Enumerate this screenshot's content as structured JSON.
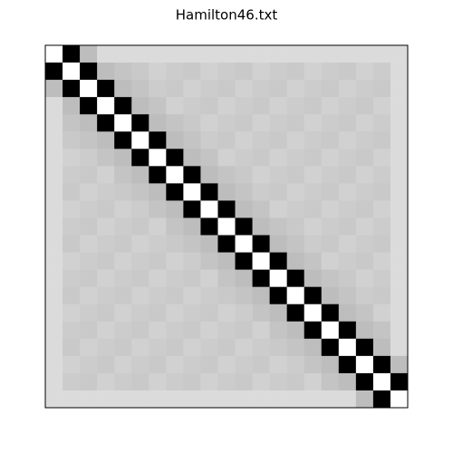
{
  "chart_data": {
    "type": "heatmap",
    "title": "Hamilton46.txt",
    "colormap": "gray",
    "clim": [
      0,
      1
    ],
    "values": [
      [
        1,
        0,
        0.74,
        0.86,
        0.86,
        0.86,
        0.86,
        0.86,
        0.86,
        0.86,
        0.86,
        0.86,
        0.86,
        0.86,
        0.86,
        0.86,
        0.86,
        0.86,
        0.86,
        0.86,
        0.86
      ],
      [
        0,
        1,
        0,
        0.74,
        0.77,
        0.79,
        0.82,
        0.8,
        0.79,
        0.82,
        0.8,
        0.79,
        0.82,
        0.8,
        0.79,
        0.82,
        0.8,
        0.79,
        0.82,
        0.8,
        0.86
      ],
      [
        0.74,
        0,
        1,
        0,
        0.74,
        0.77,
        0.8,
        0.79,
        0.82,
        0.8,
        0.79,
        0.82,
        0.8,
        0.79,
        0.82,
        0.8,
        0.79,
        0.82,
        0.8,
        0.79,
        0.86
      ],
      [
        0.86,
        0.74,
        0,
        1,
        0,
        0.74,
        0.77,
        0.82,
        0.8,
        0.79,
        0.82,
        0.8,
        0.79,
        0.82,
        0.8,
        0.79,
        0.82,
        0.8,
        0.79,
        0.82,
        0.86
      ],
      [
        0.86,
        0.77,
        0.74,
        0,
        1,
        0,
        0.74,
        0.77,
        0.79,
        0.82,
        0.8,
        0.79,
        0.82,
        0.8,
        0.79,
        0.82,
        0.8,
        0.79,
        0.82,
        0.8,
        0.86
      ],
      [
        0.86,
        0.79,
        0.77,
        0.74,
        0,
        1,
        0,
        0.74,
        0.77,
        0.8,
        0.79,
        0.82,
        0.8,
        0.79,
        0.82,
        0.8,
        0.79,
        0.82,
        0.8,
        0.79,
        0.86
      ],
      [
        0.86,
        0.82,
        0.8,
        0.77,
        0.74,
        0,
        1,
        0,
        0.74,
        0.77,
        0.82,
        0.8,
        0.79,
        0.82,
        0.8,
        0.79,
        0.82,
        0.8,
        0.79,
        0.82,
        0.86
      ],
      [
        0.86,
        0.8,
        0.79,
        0.82,
        0.77,
        0.74,
        0,
        1,
        0,
        0.74,
        0.77,
        0.79,
        0.82,
        0.8,
        0.79,
        0.82,
        0.8,
        0.79,
        0.82,
        0.8,
        0.86
      ],
      [
        0.86,
        0.79,
        0.82,
        0.8,
        0.79,
        0.77,
        0.74,
        0,
        1,
        0,
        0.74,
        0.77,
        0.8,
        0.79,
        0.82,
        0.8,
        0.79,
        0.82,
        0.8,
        0.79,
        0.86
      ],
      [
        0.86,
        0.82,
        0.8,
        0.79,
        0.82,
        0.8,
        0.77,
        0.74,
        0,
        1,
        0,
        0.74,
        0.77,
        0.82,
        0.8,
        0.79,
        0.82,
        0.8,
        0.79,
        0.82,
        0.86
      ],
      [
        0.86,
        0.8,
        0.79,
        0.82,
        0.8,
        0.79,
        0.82,
        0.77,
        0.74,
        0,
        1,
        0,
        0.74,
        0.77,
        0.79,
        0.82,
        0.8,
        0.79,
        0.82,
        0.8,
        0.86
      ],
      [
        0.86,
        0.79,
        0.82,
        0.8,
        0.79,
        0.82,
        0.8,
        0.79,
        0.77,
        0.74,
        0,
        1,
        0,
        0.74,
        0.77,
        0.8,
        0.79,
        0.82,
        0.8,
        0.79,
        0.86
      ],
      [
        0.86,
        0.82,
        0.8,
        0.79,
        0.82,
        0.8,
        0.79,
        0.82,
        0.8,
        0.77,
        0.74,
        0,
        1,
        0,
        0.74,
        0.77,
        0.82,
        0.8,
        0.79,
        0.82,
        0.86
      ],
      [
        0.86,
        0.8,
        0.79,
        0.82,
        0.8,
        0.79,
        0.82,
        0.8,
        0.79,
        0.82,
        0.77,
        0.74,
        0,
        1,
        0,
        0.74,
        0.77,
        0.79,
        0.82,
        0.8,
        0.86
      ],
      [
        0.86,
        0.79,
        0.82,
        0.8,
        0.79,
        0.82,
        0.8,
        0.79,
        0.82,
        0.8,
        0.79,
        0.77,
        0.74,
        0,
        1,
        0,
        0.74,
        0.77,
        0.8,
        0.79,
        0.86
      ],
      [
        0.86,
        0.82,
        0.8,
        0.79,
        0.82,
        0.8,
        0.79,
        0.82,
        0.8,
        0.79,
        0.82,
        0.8,
        0.77,
        0.74,
        0,
        1,
        0,
        0.74,
        0.77,
        0.82,
        0.86
      ],
      [
        0.86,
        0.8,
        0.79,
        0.82,
        0.8,
        0.79,
        0.82,
        0.8,
        0.79,
        0.82,
        0.8,
        0.79,
        0.82,
        0.77,
        0.74,
        0,
        1,
        0,
        0.74,
        0.77,
        0.86
      ],
      [
        0.86,
        0.79,
        0.82,
        0.8,
        0.79,
        0.82,
        0.8,
        0.79,
        0.82,
        0.8,
        0.79,
        0.82,
        0.8,
        0.79,
        0.77,
        0.74,
        0,
        1,
        0,
        0.74,
        0.86
      ],
      [
        0.86,
        0.82,
        0.8,
        0.79,
        0.82,
        0.8,
        0.79,
        0.82,
        0.8,
        0.79,
        0.82,
        0.8,
        0.79,
        0.82,
        0.8,
        0.77,
        0.74,
        0,
        1,
        0,
        0.74
      ],
      [
        0.86,
        0.8,
        0.79,
        0.82,
        0.8,
        0.79,
        0.82,
        0.8,
        0.79,
        0.82,
        0.8,
        0.79,
        0.82,
        0.8,
        0.79,
        0.82,
        0.77,
        0.74,
        0,
        1,
        0
      ],
      [
        0.86,
        0.86,
        0.86,
        0.86,
        0.86,
        0.86,
        0.86,
        0.86,
        0.86,
        0.86,
        0.86,
        0.86,
        0.86,
        0.86,
        0.86,
        0.86,
        0.86,
        0.86,
        0.74,
        0,
        1
      ]
    ]
  }
}
